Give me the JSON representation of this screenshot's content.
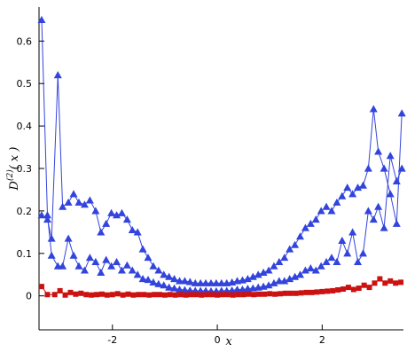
{
  "chart_data": {
    "type": "line",
    "ylabel": "D^(2)( x )",
    "xlabel": "x",
    "xlim": [
      -3.4,
      3.55
    ],
    "ylim": [
      -0.08,
      0.68
    ],
    "xticks": [
      -2,
      0,
      2
    ],
    "yticks": [
      0,
      0.1,
      0.2,
      0.3,
      0.4,
      0.5,
      0.6
    ],
    "grid": false,
    "colors": {
      "blue": "#3344dd",
      "red": "#cc1111"
    },
    "series": [
      {
        "marker": "triangle",
        "color": "#3344dd",
        "x": [
          -3.35,
          -3.24,
          -3.16,
          -3.04,
          -2.95,
          -2.84,
          -2.74,
          -2.64,
          -2.53,
          -2.43,
          -2.32,
          -2.22,
          -2.12,
          -2.02,
          -1.92,
          -1.82,
          -1.72,
          -1.62,
          -1.52,
          -1.42,
          -1.32,
          -1.22,
          -1.12,
          -1.02,
          -0.92,
          -0.82,
          -0.72,
          -0.62,
          -0.52,
          -0.42,
          -0.32,
          -0.22,
          -0.12,
          -0.02,
          0.08,
          0.18,
          0.28,
          0.38,
          0.48,
          0.58,
          0.68,
          0.78,
          0.88,
          0.98,
          1.08,
          1.18,
          1.28,
          1.38,
          1.48,
          1.58,
          1.68,
          1.78,
          1.88,
          1.98,
          2.08,
          2.18,
          2.28,
          2.38,
          2.48,
          2.58,
          2.68,
          2.78,
          2.88,
          2.98,
          3.07,
          3.18,
          3.3,
          3.42,
          3.52
        ],
        "y": [
          0.65,
          0.19,
          0.095,
          0.07,
          0.07,
          0.135,
          0.095,
          0.07,
          0.06,
          0.09,
          0.08,
          0.055,
          0.085,
          0.07,
          0.08,
          0.06,
          0.072,
          0.06,
          0.05,
          0.04,
          0.038,
          0.032,
          0.028,
          0.025,
          0.02,
          0.018,
          0.015,
          0.014,
          0.013,
          0.012,
          0.012,
          0.012,
          0.011,
          0.011,
          0.012,
          0.012,
          0.013,
          0.015,
          0.015,
          0.017,
          0.018,
          0.02,
          0.022,
          0.025,
          0.03,
          0.035,
          0.035,
          0.04,
          0.045,
          0.05,
          0.06,
          0.065,
          0.06,
          0.07,
          0.08,
          0.09,
          0.08,
          0.13,
          0.1,
          0.15,
          0.08,
          0.1,
          0.2,
          0.18,
          0.21,
          0.16,
          0.33,
          0.27,
          0.3
        ]
      },
      {
        "marker": "triangle",
        "color": "#3344dd",
        "x": [
          -3.35,
          -3.24,
          -3.16,
          -3.04,
          -2.95,
          -2.84,
          -2.74,
          -2.64,
          -2.53,
          -2.43,
          -2.32,
          -2.22,
          -2.12,
          -2.02,
          -1.92,
          -1.82,
          -1.72,
          -1.62,
          -1.52,
          -1.42,
          -1.32,
          -1.22,
          -1.12,
          -1.02,
          -0.92,
          -0.82,
          -0.72,
          -0.62,
          -0.52,
          -0.42,
          -0.32,
          -0.22,
          -0.12,
          -0.02,
          0.08,
          0.18,
          0.28,
          0.38,
          0.48,
          0.58,
          0.68,
          0.78,
          0.88,
          0.98,
          1.08,
          1.18,
          1.28,
          1.38,
          1.48,
          1.58,
          1.68,
          1.78,
          1.88,
          1.98,
          2.08,
          2.18,
          2.28,
          2.38,
          2.48,
          2.58,
          2.68,
          2.78,
          2.88,
          2.98,
          3.07,
          3.18,
          3.3,
          3.42,
          3.52
        ],
        "y": [
          0.19,
          0.18,
          0.135,
          0.52,
          0.21,
          0.22,
          0.24,
          0.22,
          0.215,
          0.225,
          0.2,
          0.15,
          0.17,
          0.195,
          0.19,
          0.195,
          0.18,
          0.155,
          0.15,
          0.11,
          0.09,
          0.07,
          0.06,
          0.05,
          0.045,
          0.04,
          0.035,
          0.035,
          0.033,
          0.03,
          0.03,
          0.03,
          0.03,
          0.03,
          0.03,
          0.03,
          0.032,
          0.035,
          0.037,
          0.04,
          0.045,
          0.05,
          0.055,
          0.06,
          0.07,
          0.08,
          0.09,
          0.11,
          0.12,
          0.14,
          0.16,
          0.17,
          0.18,
          0.2,
          0.21,
          0.2,
          0.22,
          0.235,
          0.255,
          0.24,
          0.255,
          0.26,
          0.3,
          0.44,
          0.34,
          0.3,
          0.24,
          0.17,
          0.43
        ]
      },
      {
        "marker": "square",
        "color": "#cc1111",
        "x": [
          -3.35,
          -3.24,
          -3.1,
          -3.0,
          -2.9,
          -2.8,
          -2.7,
          -2.6,
          -2.5,
          -2.4,
          -2.3,
          -2.2,
          -2.1,
          -2.0,
          -1.9,
          -1.8,
          -1.7,
          -1.6,
          -1.5,
          -1.4,
          -1.3,
          -1.2,
          -1.1,
          -1.0,
          -0.9,
          -0.8,
          -0.7,
          -0.6,
          -0.5,
          -0.4,
          -0.3,
          -0.2,
          -0.1,
          0.0,
          0.1,
          0.2,
          0.3,
          0.4,
          0.5,
          0.6,
          0.7,
          0.8,
          0.9,
          1.0,
          1.1,
          1.2,
          1.3,
          1.4,
          1.5,
          1.6,
          1.7,
          1.8,
          1.9,
          2.0,
          2.1,
          2.2,
          2.3,
          2.4,
          2.5,
          2.6,
          2.7,
          2.8,
          2.9,
          3.0,
          3.1,
          3.2,
          3.3,
          3.4,
          3.5
        ],
        "y": [
          0.022,
          0.003,
          0.003,
          0.012,
          0.002,
          0.008,
          0.004,
          0.006,
          0.003,
          0.002,
          0.003,
          0.004,
          0.002,
          0.003,
          0.005,
          0.002,
          0.004,
          0.002,
          0.003,
          0.003,
          0.002,
          0.003,
          0.003,
          0.002,
          0.003,
          0.002,
          0.003,
          0.002,
          0.003,
          0.003,
          0.002,
          0.003,
          0.003,
          0.002,
          0.003,
          0.003,
          0.002,
          0.003,
          0.003,
          0.004,
          0.003,
          0.004,
          0.004,
          0.005,
          0.004,
          0.005,
          0.006,
          0.006,
          0.006,
          0.007,
          0.008,
          0.008,
          0.009,
          0.01,
          0.011,
          0.012,
          0.014,
          0.016,
          0.02,
          0.015,
          0.018,
          0.025,
          0.02,
          0.03,
          0.04,
          0.03,
          0.035,
          0.03,
          0.032
        ]
      }
    ]
  }
}
